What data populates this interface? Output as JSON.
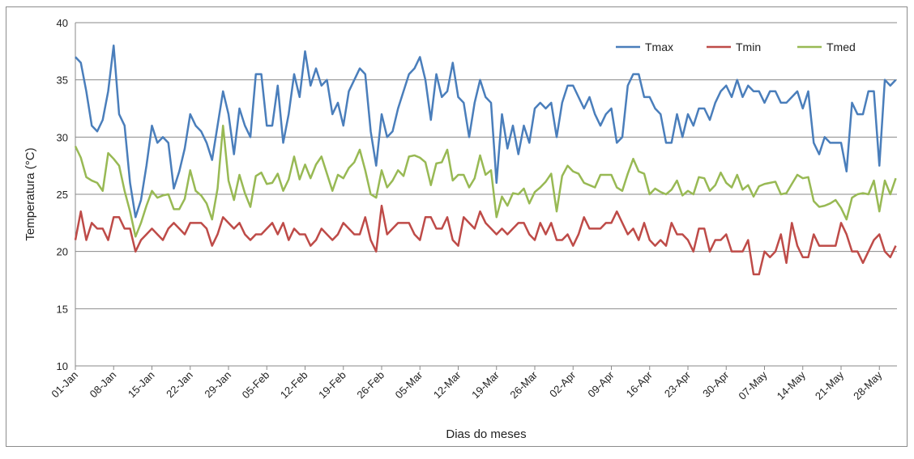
{
  "chart_data": {
    "type": "line",
    "xlabel": "Dias do meses",
    "ylabel": "Temperatura (°C)",
    "categories": [
      "01-Jan",
      null,
      null,
      null,
      null,
      null,
      null,
      "08-Jan",
      null,
      null,
      null,
      null,
      null,
      null,
      "15-Jan",
      null,
      null,
      null,
      null,
      null,
      null,
      "22-Jan",
      null,
      null,
      null,
      null,
      null,
      null,
      "29-Jan",
      null,
      null,
      null,
      null,
      null,
      null,
      "05-Feb",
      null,
      null,
      null,
      null,
      null,
      null,
      "12-Feb",
      null,
      null,
      null,
      null,
      null,
      null,
      "19-Feb",
      null,
      null,
      null,
      null,
      null,
      null,
      "26-Feb",
      null,
      null,
      null,
      null,
      null,
      null,
      "05-Mar",
      null,
      null,
      null,
      null,
      null,
      null,
      "12-Mar",
      null,
      null,
      null,
      null,
      null,
      null,
      "19-Mar",
      null,
      null,
      null,
      null,
      null,
      null,
      "26-Mar",
      null,
      null,
      null,
      null,
      null,
      null,
      "02-Apr",
      null,
      null,
      null,
      null,
      null,
      null,
      "09-Apr",
      null,
      null,
      null,
      null,
      null,
      null,
      "16-Apr",
      null,
      null,
      null,
      null,
      null,
      null,
      "23-Apr",
      null,
      null,
      null,
      null,
      null,
      null,
      "30-Apr",
      null,
      null,
      null,
      null,
      null,
      null,
      "07-May",
      null,
      null,
      null,
      null,
      null,
      null,
      "14-May",
      null,
      null,
      null,
      null,
      null,
      null,
      "21-May",
      null,
      null,
      null,
      null,
      null,
      null,
      "28-May",
      null,
      null,
      null
    ],
    "series": [
      {
        "name": "Tmax",
        "color": "#4a7ebb",
        "values": [
          37,
          36.5,
          34,
          31,
          30.5,
          31.5,
          34,
          38,
          32,
          31,
          26,
          23,
          24.5,
          27.5,
          31,
          29.5,
          30,
          29.5,
          25.5,
          27,
          29,
          32,
          31,
          30.5,
          29.5,
          28,
          31,
          34,
          32,
          28.5,
          32.5,
          31,
          30,
          35.5,
          35.5,
          31,
          31,
          34.5,
          29.5,
          32,
          35.5,
          33.5,
          37.5,
          34.5,
          36,
          34.5,
          35,
          32,
          33,
          31,
          34,
          35,
          36,
          35.5,
          30.5,
          27.5,
          32,
          30,
          30.5,
          32.5,
          34,
          35.5,
          36,
          37,
          35,
          31.5,
          35.5,
          33.5,
          34,
          36.5,
          33.5,
          33,
          30,
          33,
          35,
          33.5,
          33,
          26,
          32,
          29,
          31,
          28.5,
          31,
          29.5,
          32.5,
          33,
          32.5,
          33,
          30,
          33,
          34.5,
          34.5,
          33.5,
          32.5,
          33.5,
          32,
          31,
          32,
          32.5,
          29.5,
          30,
          34.5,
          35.5,
          35.5,
          33.5,
          33.5,
          32.5,
          32,
          29.5,
          29.5,
          32,
          30,
          32,
          31,
          32.5,
          32.5,
          31.5,
          33,
          34,
          34.5,
          33.5,
          35,
          33.5,
          34.5,
          34,
          34,
          33,
          34,
          34,
          33,
          33,
          33.5,
          34,
          32.5,
          34,
          29.5,
          28.5,
          30,
          29.5,
          29.5,
          29.5,
          27,
          33,
          32,
          32,
          34,
          34,
          27.5,
          35,
          34.5,
          35
        ]
      },
      {
        "name": "Tmin",
        "color": "#be4b48",
        "values": [
          21,
          23.5,
          21,
          22.5,
          22,
          22,
          21,
          23,
          23,
          22,
          22,
          20,
          21,
          21.5,
          22,
          21.5,
          21,
          22,
          22.5,
          22,
          21.5,
          22.5,
          22.5,
          22.5,
          22,
          20.5,
          21.5,
          23,
          22.5,
          22,
          22.5,
          21.5,
          21,
          21.5,
          21.5,
          22,
          22.5,
          21.5,
          22.5,
          21,
          22,
          21.5,
          21.5,
          20.5,
          21,
          22,
          21.5,
          21,
          21.5,
          22.5,
          22,
          21.5,
          21.5,
          23,
          21,
          20,
          24,
          21.5,
          22,
          22.5,
          22.5,
          22.5,
          21.5,
          21,
          23,
          23,
          22,
          22,
          23,
          21,
          20.5,
          23,
          22.5,
          22,
          23.5,
          22.5,
          22,
          21.5,
          22,
          21.5,
          22,
          22.5,
          22.5,
          21.5,
          21,
          22.5,
          21.5,
          22.5,
          21,
          21,
          21.5,
          20.5,
          21.5,
          23,
          22,
          22,
          22,
          22.5,
          22.5,
          23.5,
          22.5,
          21.5,
          22,
          21,
          22.5,
          21,
          20.5,
          21,
          20.5,
          22.5,
          21.5,
          21.5,
          21,
          20,
          22,
          22,
          20,
          21,
          21,
          21.5,
          20,
          20,
          20,
          21,
          18,
          18,
          20,
          19.5,
          20,
          21.5,
          19,
          22.5,
          20.5,
          19.5,
          19.5,
          21.5,
          20.5,
          20.5,
          20.5,
          20.5,
          22.5,
          21.5,
          20,
          20,
          19,
          20,
          21,
          21.5,
          20,
          19.5,
          20.5
        ]
      },
      {
        "name": "Tmed",
        "color": "#98b954",
        "values": [
          29.2,
          28.2,
          26.5,
          26.2,
          26,
          25.3,
          28.6,
          28.1,
          27.5,
          25.3,
          23.5,
          21.3,
          22.5,
          24,
          25.3,
          24.7,
          24.9,
          25,
          23.7,
          23.7,
          24.6,
          27.1,
          25.3,
          24.9,
          24.2,
          22.8,
          25.5,
          31,
          26.2,
          24.5,
          26.7,
          25.1,
          23.9,
          26.6,
          26.9,
          25.9,
          26,
          26.8,
          25.3,
          26.3,
          28.3,
          26.3,
          27.6,
          26.4,
          27.6,
          28.3,
          26.8,
          25.3,
          26.7,
          26.4,
          27.3,
          27.8,
          28.9,
          27.1,
          25,
          24.7,
          27.1,
          25.6,
          26.2,
          27.1,
          26.6,
          28.3,
          28.4,
          28.2,
          27.8,
          25.8,
          27.7,
          27.8,
          28.9,
          26.2,
          26.7,
          26.7,
          25.6,
          26.4,
          28.4,
          26.7,
          27.1,
          23,
          24.8,
          24,
          25.1,
          25,
          25.5,
          24.2,
          25.2,
          25.6,
          26.1,
          26.8,
          23.5,
          26.6,
          27.5,
          27,
          26.8,
          26,
          25.8,
          25.6,
          26.7,
          26.7,
          26.7,
          25.6,
          25.3,
          26.8,
          28.1,
          27,
          26.8,
          25,
          25.5,
          25.2,
          25,
          25.4,
          26.2,
          24.9,
          25.3,
          25,
          26.5,
          26.4,
          25.3,
          25.8,
          26.9,
          26,
          25.6,
          26.7,
          25.4,
          25.8,
          24.8,
          25.7,
          25.9,
          26,
          26.1,
          25,
          25.1,
          25.9,
          26.7,
          26.4,
          26.5,
          24.4,
          23.9,
          24,
          24.2,
          24.5,
          23.8,
          22.8,
          24.7,
          25,
          25.1,
          25,
          26.2,
          23.5,
          26.2,
          25,
          26.4
        ]
      }
    ],
    "ylim": [
      10,
      40
    ],
    "yticks": [
      10,
      15,
      20,
      25,
      30,
      35,
      40
    ],
    "grid": true,
    "legend": "top-right"
  }
}
